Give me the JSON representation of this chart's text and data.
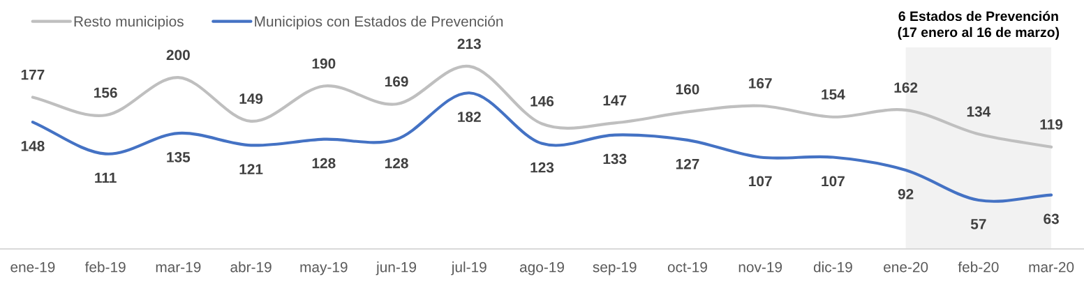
{
  "chart_data": {
    "type": "line",
    "categories": [
      "ene-19",
      "feb-19",
      "mar-19",
      "abr-19",
      "may-19",
      "jun-19",
      "jul-19",
      "ago-19",
      "sep-19",
      "oct-19",
      "nov-19",
      "dic-19",
      "ene-20",
      "feb-20",
      "mar-20"
    ],
    "series": [
      {
        "name": "Resto municipios",
        "color": "#bfbfbf",
        "values": [
          177,
          156,
          200,
          149,
          190,
          169,
          213,
          146,
          147,
          160,
          167,
          154,
          162,
          134,
          119
        ]
      },
      {
        "name": "Municipios con Estados de Prevención",
        "color": "#4472c4",
        "values": [
          148,
          111,
          135,
          121,
          128,
          128,
          182,
          123,
          133,
          127,
          107,
          107,
          92,
          57,
          63
        ]
      }
    ],
    "tick_labels": "x",
    "data_labels": true,
    "legend": "top left",
    "bands": [
      {
        "axis": "x",
        "from": "ene-20",
        "to": "mar-20",
        "label": "6 Estados de Prevención\n(17 enero al 16 de marzo)",
        "color": "#f2f2f2"
      }
    ]
  }
}
